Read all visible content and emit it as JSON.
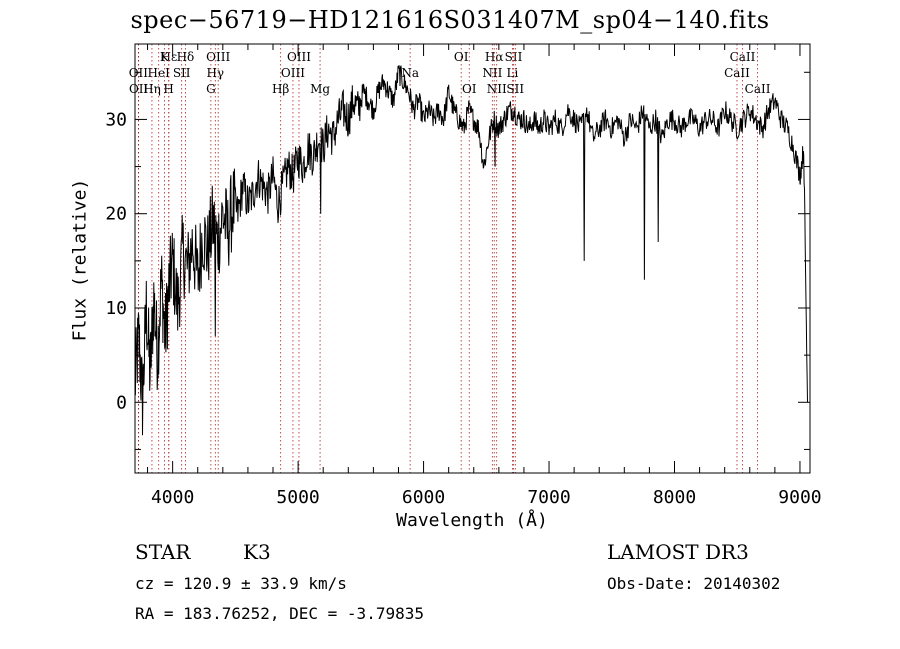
{
  "chart_data": {
    "type": "line",
    "title": "spec−56719−HD121616S031407M_sp04−140.fits",
    "xlabel": "Wavelength (Å)",
    "ylabel": "Flux (relative)",
    "xlim": [
      3700,
      9080
    ],
    "ylim": [
      -7.5,
      38
    ],
    "xticks": [
      4000,
      5000,
      6000,
      7000,
      8000,
      9000
    ],
    "yticks": [
      0,
      10,
      20,
      30
    ],
    "grid": false,
    "series": [
      {
        "name": "spectrum",
        "x": [
          3700,
          3730,
          3760,
          3790,
          3820,
          3850,
          3880,
          3910,
          3940,
          3970,
          4000,
          4040,
          4080,
          4120,
          4160,
          4200,
          4240,
          4280,
          4320,
          4360,
          4400,
          4440,
          4480,
          4520,
          4560,
          4600,
          4640,
          4680,
          4720,
          4760,
          4800,
          4840,
          4880,
          4920,
          4960,
          5000,
          5040,
          5080,
          5120,
          5160,
          5200,
          5240,
          5280,
          5320,
          5360,
          5400,
          5440,
          5480,
          5520,
          5560,
          5600,
          5640,
          5680,
          5720,
          5760,
          5800,
          5840,
          5880,
          5920,
          5960,
          6000,
          6040,
          6080,
          6120,
          6160,
          6200,
          6240,
          6280,
          6320,
          6360,
          6400,
          6440,
          6480,
          6520,
          6560,
          6600,
          6640,
          6680,
          6720,
          6760,
          6800,
          6840,
          6880,
          6920,
          6960,
          7000,
          7050,
          7100,
          7150,
          7200,
          7250,
          7300,
          7350,
          7400,
          7450,
          7500,
          7550,
          7600,
          7650,
          7700,
          7750,
          7800,
          7850,
          7900,
          7950,
          8000,
          8050,
          8100,
          8150,
          8200,
          8250,
          8300,
          8350,
          8400,
          8450,
          8500,
          8550,
          8600,
          8650,
          8700,
          8750,
          8800,
          8850,
          8900,
          8950,
          9000,
          9030,
          9060
        ],
        "y": [
          2,
          7,
          0,
          10,
          3,
          11,
          5,
          13,
          7,
          12,
          15,
          10,
          16,
          14,
          17,
          13,
          18,
          16,
          19,
          17,
          20,
          18,
          21,
          20,
          23,
          21,
          22,
          24,
          23,
          22,
          24,
          21,
          23,
          25,
          24,
          26,
          25,
          27,
          26,
          28,
          27,
          29,
          28,
          30,
          31,
          30,
          32,
          31,
          33,
          32,
          31,
          33,
          34,
          33,
          32,
          35,
          34,
          33,
          31,
          32,
          30,
          31,
          30,
          31,
          30,
          33,
          31,
          30,
          29,
          31,
          30,
          29,
          25,
          28,
          30,
          29,
          30,
          31,
          31,
          30,
          30,
          29,
          30,
          29,
          30,
          29,
          30,
          29,
          31,
          30,
          29,
          31,
          28,
          29,
          30,
          29,
          30,
          28,
          30,
          29,
          31,
          29,
          30,
          28,
          30,
          30,
          29,
          30,
          30,
          29,
          30,
          30,
          29,
          31,
          30,
          29,
          30,
          31,
          30,
          29,
          31,
          32,
          30,
          29,
          27,
          24,
          27,
          0
        ],
        "dips": [
          {
            "x": 7280,
            "y": 15
          },
          {
            "x": 7760,
            "y": 13
          },
          {
            "x": 7870,
            "y": 17
          },
          {
            "x": 6570,
            "y": 25
          },
          {
            "x": 5180,
            "y": 20
          },
          {
            "x": 4340,
            "y": 7
          },
          {
            "x": 9060,
            "y": 0
          }
        ]
      }
    ],
    "lines": [
      {
        "name": "Hδ",
        "x": 4102,
        "row": 1
      },
      {
        "name": "OIII",
        "x": 4363,
        "row": 1
      },
      {
        "name": "OIII",
        "x": 5007,
        "row": 1
      },
      {
        "name": "OI",
        "x": 6300,
        "row": 1
      },
      {
        "name": "Hα",
        "x": 6563,
        "row": 1
      },
      {
        "name": "SII",
        "x": 6717,
        "row": 1
      },
      {
        "name": "CaII",
        "x": 8542,
        "row": 1
      },
      {
        "name": "Hε",
        "x": 3970,
        "row": 1
      },
      {
        "name": "K",
        "x": 3934,
        "row": 1
      },
      {
        "name": "OII",
        "x": 3727,
        "row": 2
      },
      {
        "name": "HeI",
        "x": 3889,
        "row": 2
      },
      {
        "name": "SII",
        "x": 4072,
        "row": 2
      },
      {
        "name": "Hγ",
        "x": 4340,
        "row": 2
      },
      {
        "name": "OIII",
        "x": 4959,
        "row": 2
      },
      {
        "name": "Na",
        "x": 5893,
        "row": 2
      },
      {
        "name": "NII",
        "x": 6548,
        "row": 2
      },
      {
        "name": "Li",
        "x": 6708,
        "row": 2
      },
      {
        "name": "CaII",
        "x": 8498,
        "row": 2
      },
      {
        "name": "OII",
        "x": 3729,
        "row": 3
      },
      {
        "name": "Hη",
        "x": 3835,
        "row": 3
      },
      {
        "name": "H",
        "x": 3968,
        "row": 3
      },
      {
        "name": "G",
        "x": 4305,
        "row": 3
      },
      {
        "name": "Hβ",
        "x": 4861,
        "row": 3
      },
      {
        "name": "Mg",
        "x": 5175,
        "row": 3
      },
      {
        "name": "OI",
        "x": 6364,
        "row": 3
      },
      {
        "name": "NII",
        "x": 6583,
        "row": 3
      },
      {
        "name": "SII",
        "x": 6731,
        "row": 3
      },
      {
        "name": "CaII",
        "x": 8662,
        "row": 3
      }
    ]
  },
  "info": {
    "class_label": "STAR",
    "subclass": "K3",
    "survey": "LAMOST DR3",
    "cz": "cz = 120.9 ± 33.9 km/s",
    "obs_date": "Obs-Date: 20140302",
    "radec": "RA = 183.76252, DEC =  -3.79835"
  }
}
